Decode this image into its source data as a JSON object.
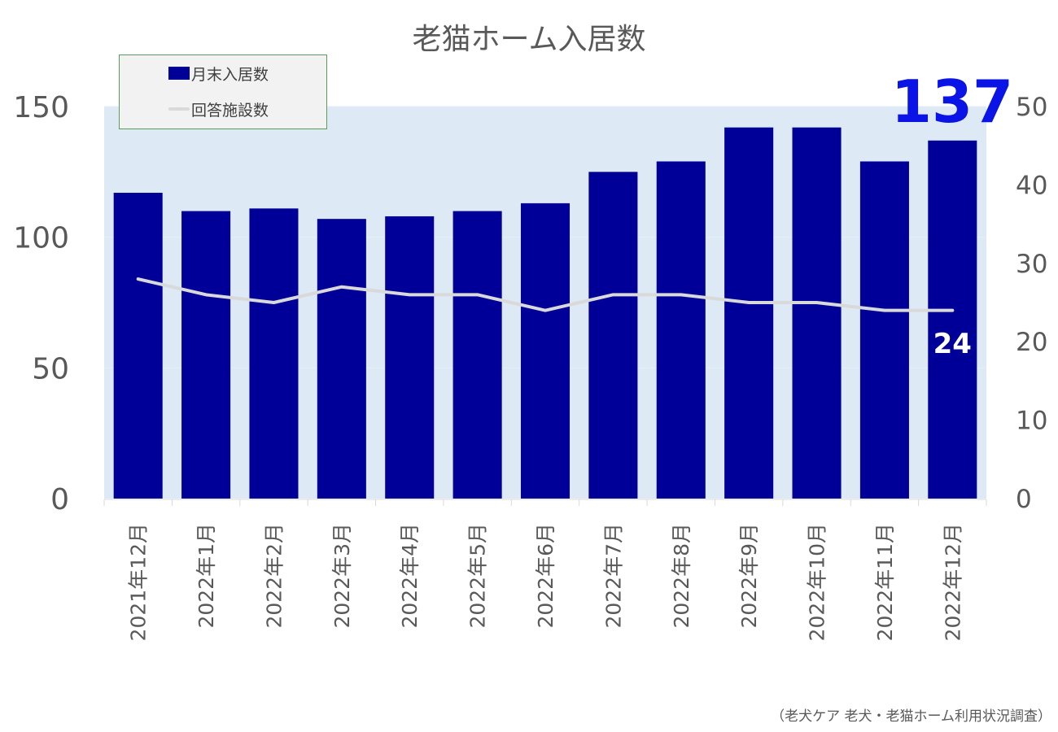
{
  "chart_data": {
    "type": "bar",
    "title": "老猫ホーム入居数",
    "categories": [
      "2021年12月",
      "2022年1月",
      "2022年2月",
      "2022年3月",
      "2022年4月",
      "2022年5月",
      "2022年6月",
      "2022年7月",
      "2022年8月",
      "2022年9月",
      "2022年10月",
      "2022年11月",
      "2022年12月"
    ],
    "series": [
      {
        "name": "月末入居数",
        "type": "bar",
        "axis": "left",
        "values": [
          117,
          110,
          111,
          107,
          108,
          110,
          113,
          125,
          129,
          142,
          142,
          129,
          137
        ]
      },
      {
        "name": "回答施設数",
        "type": "line",
        "axis": "right",
        "values": [
          28,
          26,
          25,
          27,
          26,
          26,
          24,
          26,
          26,
          25,
          25,
          24,
          24
        ]
      }
    ],
    "ylim_left": [
      0,
      150
    ],
    "yticks_left": [
      0,
      50,
      100,
      150
    ],
    "ylim_right": [
      0,
      50
    ],
    "yticks_right": [
      0,
      10,
      20,
      30,
      40,
      50
    ],
    "annotations": [
      {
        "text": "137",
        "series": "月末入居数",
        "index": 12
      },
      {
        "text": "24",
        "series": "回答施設数",
        "index": 12
      }
    ],
    "grid": true,
    "legend": "top-left",
    "colors": {
      "bar": "#000099",
      "line": "#d9d9d9",
      "plot_bg": "#dde9f4",
      "bar_label": "#0a14e6",
      "line_label": "#ffffff",
      "text": "#595959"
    }
  },
  "source": "（老犬ケア 老犬・老猫ホーム利用状況調査）"
}
